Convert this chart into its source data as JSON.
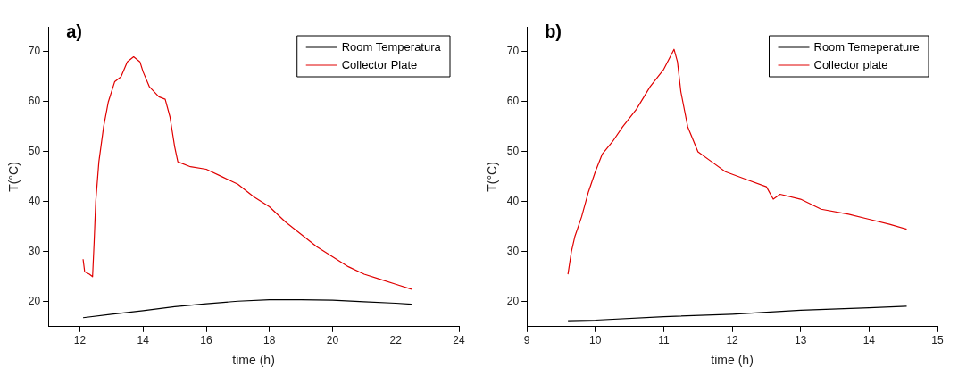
{
  "chart_data": [
    {
      "type": "line",
      "title": "a)",
      "xlabel": "time (h)",
      "ylabel": "T(°C)",
      "xlim": [
        11,
        24
      ],
      "xticks": [
        12,
        14,
        16,
        18,
        20,
        22,
        24
      ],
      "ylim": [
        15,
        75
      ],
      "yticks": [
        20,
        30,
        40,
        50,
        60,
        70
      ],
      "legend": "top right",
      "grid": false,
      "marker": "none",
      "line_style": "solid",
      "series": [
        {
          "name": "Room Temperatura",
          "color": "#000000",
          "x": [
            12.1,
            13,
            14,
            15,
            16,
            17,
            18,
            19,
            20,
            21,
            22,
            22.5
          ],
          "values": [
            16.8,
            17.5,
            18.2,
            19,
            19.6,
            20.1,
            20.4,
            20.4,
            20.3,
            20,
            19.7,
            19.5
          ]
        },
        {
          "name": "Collector Plate",
          "color": "#e00000",
          "x": [
            12.1,
            12.15,
            12.3,
            12.4,
            12.45,
            12.5,
            12.6,
            12.75,
            12.9,
            13.1,
            13.3,
            13.5,
            13.7,
            13.9,
            14.0,
            14.2,
            14.5,
            14.7,
            14.85,
            15.0,
            15.1,
            15.5,
            16.0,
            16.5,
            17.0,
            17.5,
            18.0,
            18.5,
            19.0,
            19.5,
            20.0,
            20.5,
            21.0,
            21.5,
            22.0,
            22.5
          ],
          "values": [
            28.5,
            26,
            25.5,
            25,
            32,
            40,
            48,
            55,
            60,
            64,
            65,
            68,
            69,
            68,
            66,
            63,
            61,
            60.5,
            57,
            51,
            48,
            47,
            46.5,
            45,
            43.5,
            41,
            39,
            36,
            33.5,
            31,
            29,
            27,
            25.5,
            24.5,
            23.5,
            22.5
          ]
        }
      ]
    },
    {
      "type": "line",
      "title": "b)",
      "xlabel": "time (h)",
      "ylabel": "T(°C)",
      "xlim": [
        9,
        15
      ],
      "xticks": [
        9,
        10,
        11,
        12,
        13,
        14,
        15
      ],
      "ylim": [
        15,
        75
      ],
      "yticks": [
        20,
        30,
        40,
        50,
        60,
        70
      ],
      "legend": "top right",
      "grid": false,
      "marker": "none",
      "line_style": "solid",
      "series": [
        {
          "name": "Room Temeperature",
          "color": "#000000",
          "x": [
            9.6,
            10,
            11,
            12,
            13,
            14,
            14.55
          ],
          "values": [
            16.2,
            16.3,
            17,
            17.5,
            18.3,
            18.8,
            19.1
          ]
        },
        {
          "name": "Collector plate",
          "color": "#e00000",
          "x": [
            9.6,
            9.65,
            9.7,
            9.8,
            9.9,
            10.0,
            10.1,
            10.25,
            10.4,
            10.6,
            10.8,
            11.0,
            11.15,
            11.2,
            11.25,
            11.35,
            11.5,
            11.7,
            11.9,
            12.2,
            12.5,
            12.6,
            12.7,
            13.0,
            13.3,
            13.7,
            14.0,
            14.3,
            14.55
          ],
          "values": [
            25.5,
            30,
            33,
            37,
            42,
            46,
            49.5,
            52,
            55,
            58.5,
            63,
            66.5,
            70.5,
            68,
            62,
            55,
            50,
            48,
            46,
            44.5,
            43,
            40.5,
            41.5,
            40.5,
            38.5,
            37.5,
            36.5,
            35.5,
            34.5
          ]
        }
      ]
    }
  ]
}
